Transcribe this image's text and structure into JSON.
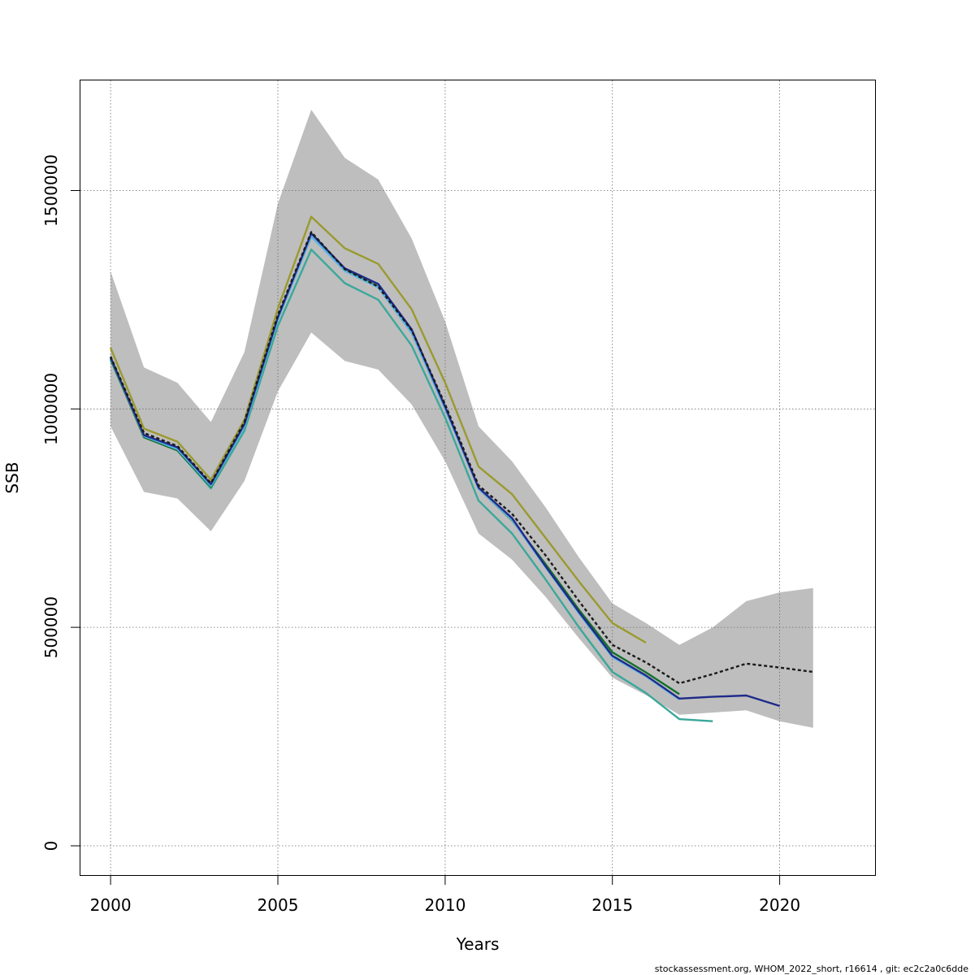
{
  "chart_data": {
    "type": "line",
    "xlabel": "Years",
    "ylabel": "SSB",
    "xlim": [
      1999.1,
      2022.85
    ],
    "ylim": [
      -67000,
      1752000
    ],
    "x_ticks": [
      2000,
      2005,
      2010,
      2015,
      2020
    ],
    "x_tick_labels": [
      "2000",
      "2005",
      "2010",
      "2015",
      "2020"
    ],
    "y_ticks": [
      0,
      500000,
      1000000,
      1500000
    ],
    "y_tick_labels": [
      "0",
      "500000",
      "1000000",
      "1500000"
    ],
    "grid": true,
    "band": {
      "color": "#bebebe",
      "x": [
        2000,
        2001,
        2002,
        2003,
        2004,
        2005,
        2006,
        2007,
        2008,
        2009,
        2010,
        2011,
        2012,
        2013,
        2014,
        2015,
        2016,
        2017,
        2018,
        2019,
        2020,
        2021
      ],
      "upper": [
        1315000,
        1095000,
        1060000,
        970000,
        1130000,
        1470000,
        1685000,
        1575000,
        1525000,
        1390000,
        1200000,
        960000,
        880000,
        775000,
        660000,
        555000,
        510000,
        460000,
        500000,
        560000,
        580000,
        590000
      ],
      "lower": [
        960000,
        810000,
        795000,
        720000,
        835000,
        1040000,
        1175000,
        1110000,
        1090000,
        1010000,
        880000,
        715000,
        655000,
        570000,
        475000,
        385000,
        345000,
        300000,
        305000,
        310000,
        285000,
        270000
      ]
    },
    "series": [
      {
        "color": "#1a1a1a",
        "dashed": true,
        "x": [
          2000,
          2001,
          2002,
          2003,
          2004,
          2005,
          2006,
          2007,
          2008,
          2009,
          2010,
          2011,
          2012,
          2013,
          2014,
          2015,
          2016,
          2017,
          2018,
          2019,
          2020,
          2021
        ],
        "values": [
          1120000,
          945000,
          915000,
          830000,
          970000,
          1215000,
          1405000,
          1320000,
          1280000,
          1180000,
          1010000,
          825000,
          760000,
          665000,
          560000,
          460000,
          420000,
          372000,
          393000,
          417000,
          408000,
          398000
        ]
      },
      {
        "color": "#1f2a8a",
        "dashed": false,
        "x": [
          2000,
          2001,
          2002,
          2003,
          2004,
          2005,
          2006,
          2007,
          2008,
          2009,
          2010,
          2011,
          2012,
          2013,
          2014,
          2015,
          2016,
          2017,
          2018,
          2019,
          2020
        ],
        "values": [
          1118000,
          940000,
          912000,
          828000,
          965000,
          1210000,
          1402000,
          1322000,
          1286000,
          1182000,
          1005000,
          820000,
          750000,
          640000,
          535000,
          435000,
          390000,
          337000,
          341000,
          344000,
          320000
        ]
      },
      {
        "color": "#5ab4e6",
        "dashed": false,
        "x": [
          2000,
          2001,
          2002,
          2003,
          2004,
          2005,
          2006,
          2007,
          2008,
          2009,
          2010,
          2011,
          2012,
          2013,
          2014,
          2015,
          2016,
          2017
        ],
        "values": [
          1117000,
          938000,
          908000,
          824000,
          960000,
          1205000,
          1395000,
          1316000,
          1278000,
          1174000,
          1000000,
          818000,
          746000,
          638000,
          532000,
          432000,
          388000,
          335000
        ]
      },
      {
        "color": "#12702a",
        "dashed": false,
        "x": [
          2000,
          2001,
          2002,
          2003,
          2004,
          2005,
          2006,
          2007,
          2008,
          2009,
          2010,
          2011,
          2012,
          2013,
          2014,
          2015,
          2016,
          2017
        ],
        "values": [
          1115000,
          935000,
          905000,
          822000,
          962000,
          1208000,
          1395000,
          1318000,
          1280000,
          1176000,
          1003000,
          818000,
          745000,
          645000,
          540000,
          443000,
          397000,
          347000
        ]
      },
      {
        "color": "#9a9a30",
        "dashed": false,
        "x": [
          2000,
          2001,
          2002,
          2003,
          2004,
          2005,
          2006,
          2007,
          2008,
          2009,
          2010,
          2011,
          2012,
          2013,
          2014,
          2015,
          2016
        ],
        "values": [
          1140000,
          955000,
          925000,
          838000,
          975000,
          1230000,
          1440000,
          1368000,
          1332000,
          1228000,
          1060000,
          868000,
          805000,
          705000,
          605000,
          510000,
          465000
        ]
      },
      {
        "color": "#3ba89a",
        "dashed": false,
        "x": [
          2000,
          2001,
          2002,
          2003,
          2004,
          2005,
          2006,
          2007,
          2008,
          2009,
          2010,
          2011,
          2012,
          2013,
          2014,
          2015,
          2016,
          2017,
          2018
        ],
        "values": [
          1112000,
          938000,
          905000,
          818000,
          950000,
          1190000,
          1365000,
          1288000,
          1250000,
          1145000,
          980000,
          790000,
          715000,
          610000,
          500000,
          398000,
          350000,
          290000,
          285000
        ]
      }
    ]
  },
  "footer": "stockassessment.org, WHOM_2022_short, r16614 , git: ec2c2a0c6dde"
}
